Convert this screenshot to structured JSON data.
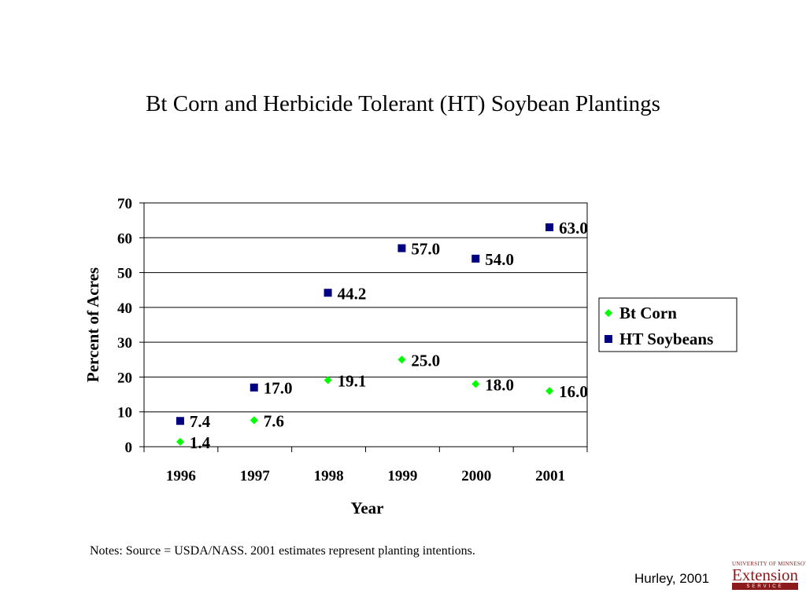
{
  "slide": {
    "notes": "Notes: Source = USDA/NASS.  2001 estimates represent planting intentions.",
    "credit": "Hurley, 2001",
    "logo": {
      "top": "UNIVERSITY OF MINNESOTA",
      "main": "Extension",
      "bar": "SERVICE"
    }
  },
  "chart_data": {
    "type": "scatter",
    "title": "Bt Corn and Herbicide Tolerant (HT) Soybean Plantings",
    "xlabel": "Year",
    "ylabel": "Percent of Acres",
    "categories": [
      "1996",
      "1997",
      "1998",
      "1999",
      "2000",
      "2001"
    ],
    "ylim": [
      0,
      70
    ],
    "yticks": [
      0,
      10,
      20,
      30,
      40,
      50,
      60,
      70
    ],
    "grid": "horizontal",
    "legend_position": "right",
    "series": [
      {
        "name": "Bt Corn",
        "marker": "diamond",
        "color": "#00ff00",
        "values": [
          1.4,
          7.6,
          19.1,
          25.0,
          18.0,
          16.0
        ],
        "labels": [
          "1.4",
          "7.6",
          "19.1",
          "25.0",
          "18.0",
          "16.0"
        ]
      },
      {
        "name": "HT Soybeans",
        "marker": "square",
        "color": "#000080",
        "values": [
          7.4,
          17.0,
          44.2,
          57.0,
          54.0,
          63.0
        ],
        "labels": [
          "7.4",
          "17.0",
          "44.2",
          "57.0",
          "54.0",
          "63.0"
        ]
      }
    ]
  }
}
